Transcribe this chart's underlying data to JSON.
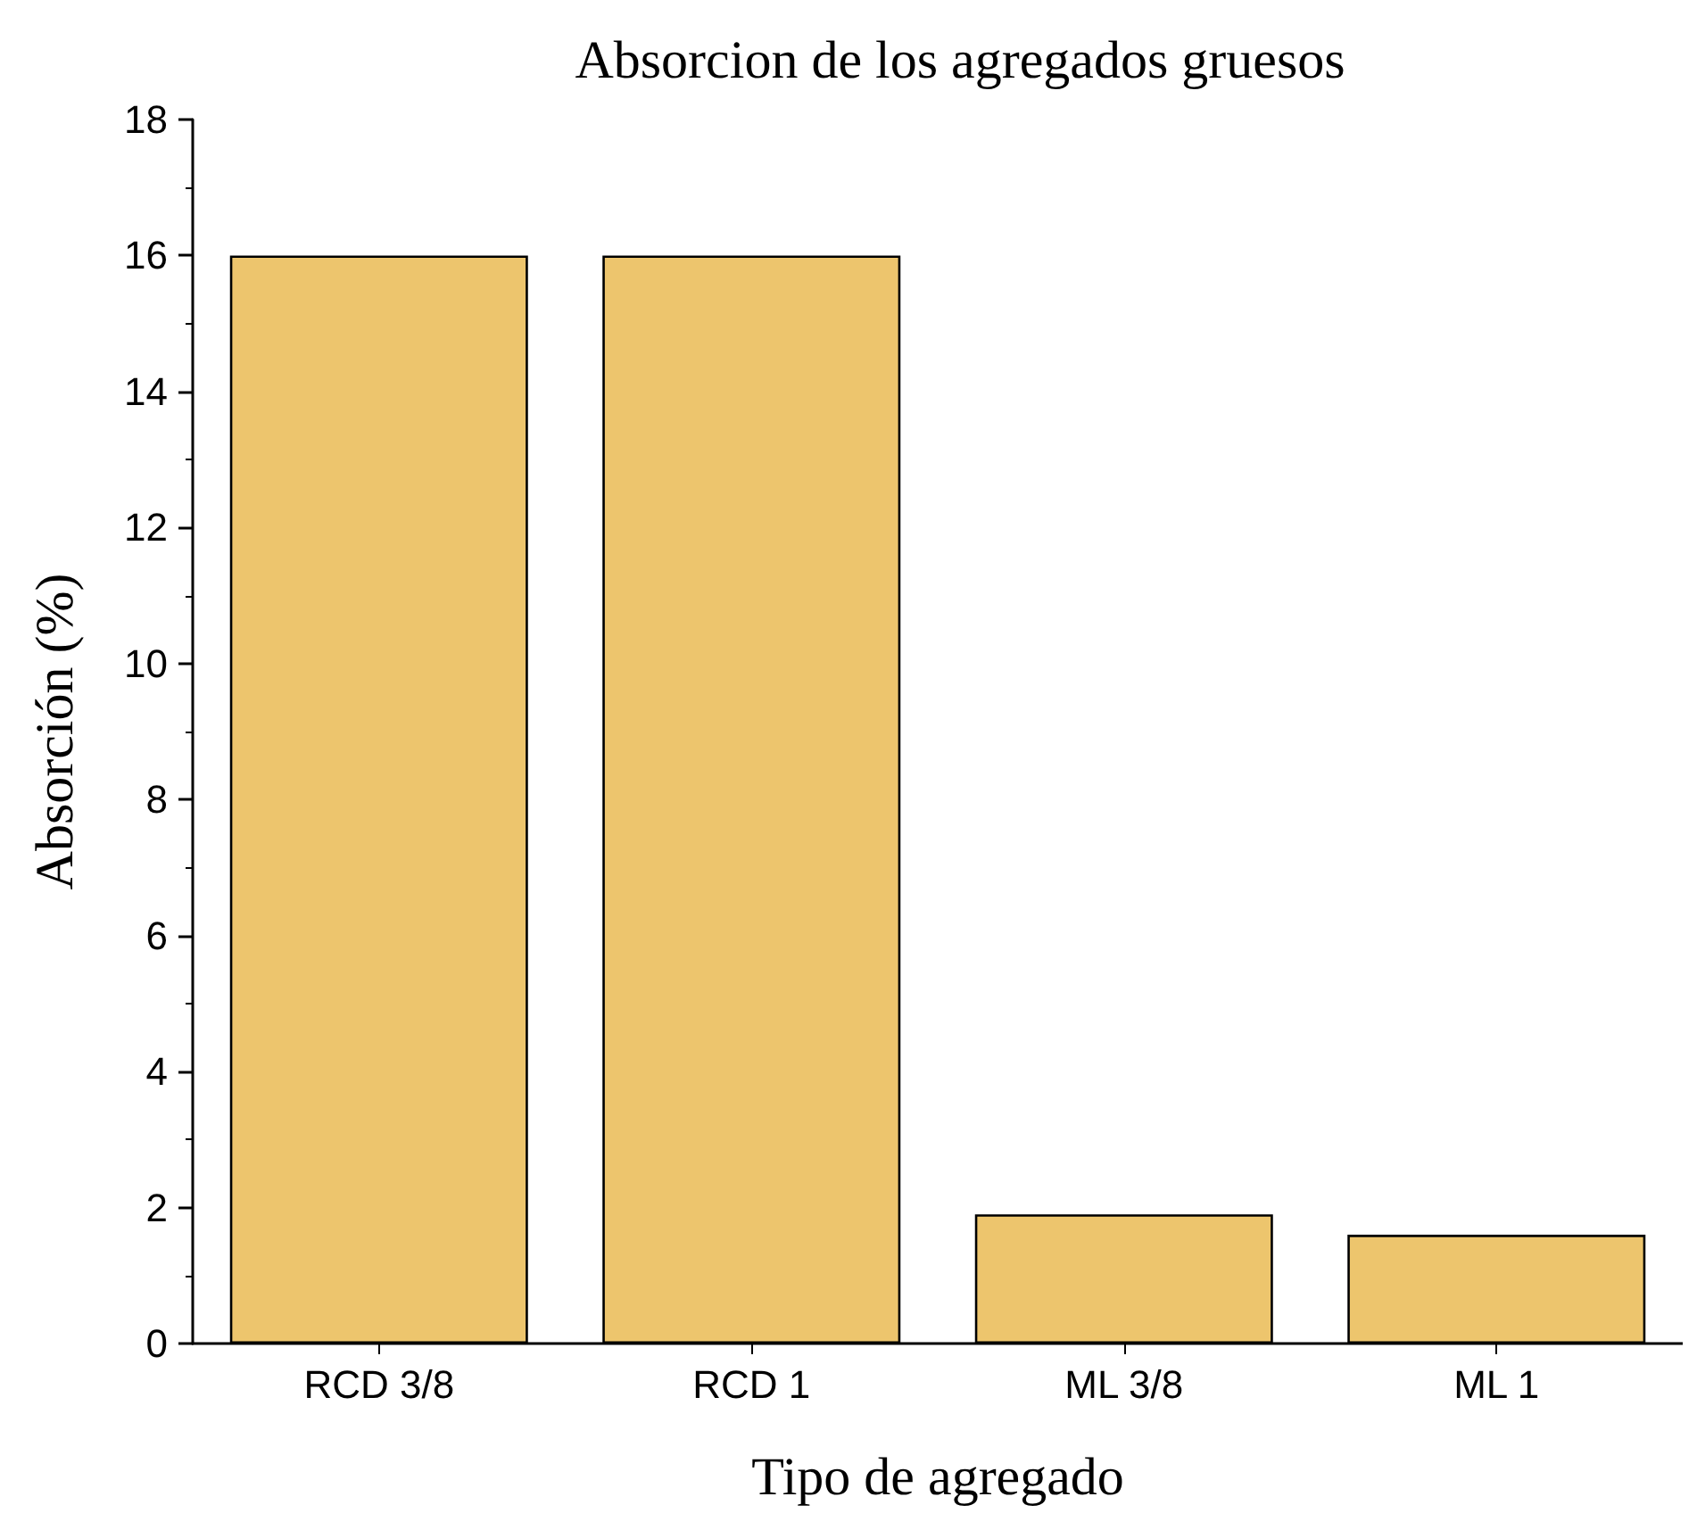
{
  "chart_data": {
    "type": "bar",
    "title": "Absorcion de los agregados gruesos",
    "xlabel": "Tipo de agregado",
    "ylabel": "Absorción (%)",
    "categories": [
      "RCD 3/8",
      "RCD 1",
      "ML 3/8",
      "ML 1"
    ],
    "values": [
      16,
      16,
      1.9,
      1.6
    ],
    "color": "#edc56d",
    "ylim": [
      0,
      18
    ],
    "yticks": [
      0,
      2,
      4,
      6,
      8,
      10,
      12,
      14,
      16,
      18
    ],
    "grid": false
  }
}
